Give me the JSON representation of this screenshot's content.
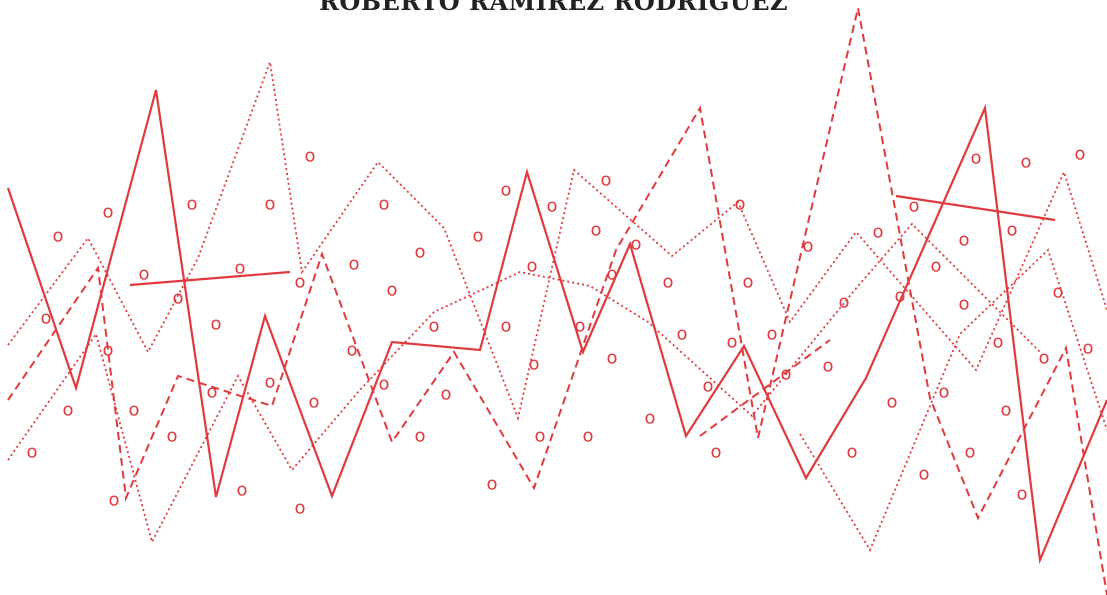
{
  "cover": {
    "author": "ROBERTO RAMÍREZ RODRÍGUEZ",
    "accent_color": "#e03a3e",
    "pattern_glyph": "o",
    "pattern_description_icon": "abstract-red-line-pattern-icon"
  }
}
